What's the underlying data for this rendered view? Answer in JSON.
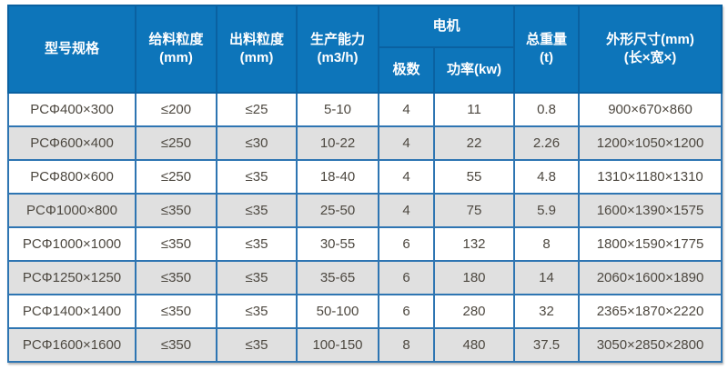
{
  "chart_data": {
    "type": "table",
    "header": {
      "model": "型号规格",
      "feed_line1": "给料粒度",
      "feed_line2": "(mm)",
      "out_line1": "出料粒度",
      "out_line2": "(mm)",
      "capacity_line1": "生产能力",
      "capacity_line2": "(m3/h)",
      "motor": "电机",
      "motor_poles": "极数",
      "motor_power": "功率(kw)",
      "weight_line1": "总重量",
      "weight_line2": "(t)",
      "dims_line1": "外形尺寸(mm)",
      "dims_line2": "(长×宽×)"
    },
    "rows": [
      [
        "PCΦ400×300",
        "≤200",
        "≤25",
        "5-10",
        "4",
        "11",
        "0.8",
        "900×670×860"
      ],
      [
        "PCΦ600×400",
        "≤250",
        "≤30",
        "10-22",
        "4",
        "22",
        "2.26",
        "1200×1050×1200"
      ],
      [
        "PCΦ800×600",
        "≤250",
        "≤35",
        "18-40",
        "4",
        "55",
        "4.8",
        "1310×1180×1310"
      ],
      [
        "PCΦ1000×800",
        "≤350",
        "≤35",
        "25-50",
        "4",
        "75",
        "5.9",
        "1600×1390×1575"
      ],
      [
        "PCΦ1000×1000",
        "≤350",
        "≤35",
        "30-55",
        "6",
        "132",
        "8",
        "1800×1590×1775"
      ],
      [
        "PCΦ1250×1250",
        "≤350",
        "≤35",
        "35-65",
        "6",
        "180",
        "14",
        "2060×1600×1890"
      ],
      [
        "PCΦ1400×1400",
        "≤350",
        "≤35",
        "50-100",
        "6",
        "280",
        "32",
        "2365×1870×2220"
      ],
      [
        "PCΦ1600×1600",
        "≤350",
        "≤35",
        "100-150",
        "8",
        "480",
        "37.5",
        "3050×2850×2800"
      ]
    ]
  },
  "colors": {
    "header_bg": "#0d75ba",
    "header_text": "#ffffff",
    "grid_line": "#2e75b2",
    "header_grid_line": "#0a61a1",
    "outer_border": "#1c4f80",
    "row_alt_bg": "#e0e0e0",
    "row_bg": "#ffffff",
    "cell_text": "#4d4840"
  }
}
